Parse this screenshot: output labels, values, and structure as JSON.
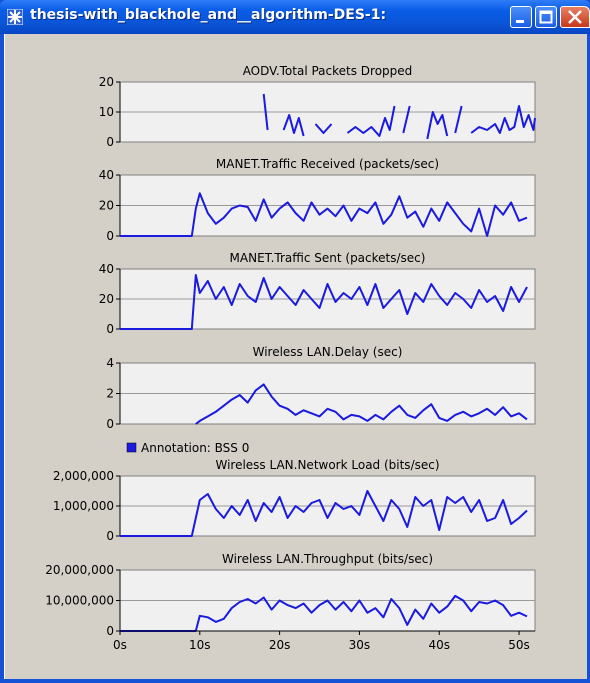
{
  "window": {
    "title": "thesis-with_blackhole_and__algorithm-DES-1:",
    "app_icon": "star-icon",
    "controls": [
      "minimize-icon",
      "maximize-icon",
      "close-icon"
    ],
    "colors": {
      "titlebar": "#0a54d6",
      "client": "#d4d0c8",
      "plot_bg": "#f0f0f0",
      "line": "#1a1ae0",
      "close": "#c8381a"
    }
  },
  "x_axis": {
    "ticks": [
      "0s",
      "10s",
      "20s",
      "30s",
      "40s",
      "50s"
    ],
    "range": [
      0,
      52
    ]
  },
  "chart_data": [
    {
      "type": "line",
      "title": "AODV.Total Packets Dropped",
      "ylim": [
        0,
        20
      ],
      "yticks": [
        "0",
        "10",
        "20"
      ],
      "y_tick_values": [
        0,
        10,
        20
      ],
      "grid": true,
      "series": [
        {
          "segments": [
            [
              [
                18,
                16
              ],
              [
                18.5,
                4
              ]
            ],
            [
              [
                20.5,
                4
              ],
              [
                21.2,
                9
              ],
              [
                21.8,
                3
              ],
              [
                22.4,
                8
              ],
              [
                23,
                2
              ]
            ],
            [
              [
                24.5,
                6
              ],
              [
                25.5,
                3
              ],
              [
                26.5,
                6
              ]
            ],
            [
              [
                28.5,
                3
              ],
              [
                29.5,
                5
              ],
              [
                30.5,
                3
              ],
              [
                31.5,
                5
              ],
              [
                32.5,
                2
              ],
              [
                33.2,
                8
              ],
              [
                33.8,
                4
              ],
              [
                34.4,
                12
              ]
            ],
            [
              [
                35.5,
                3
              ],
              [
                36.3,
                12
              ]
            ],
            [
              [
                38.5,
                1
              ],
              [
                39.2,
                10
              ],
              [
                39.8,
                6
              ],
              [
                40.4,
                9
              ],
              [
                41,
                2
              ]
            ],
            [
              [
                42,
                3
              ],
              [
                42.8,
                12
              ]
            ],
            [
              [
                44,
                3
              ],
              [
                45,
                5
              ],
              [
                46,
                4
              ],
              [
                47,
                6
              ],
              [
                47.6,
                3
              ],
              [
                48.2,
                8
              ],
              [
                48.8,
                4
              ],
              [
                49.4,
                5
              ],
              [
                50,
                12
              ],
              [
                50.6,
                5
              ],
              [
                51.2,
                9
              ],
              [
                51.8,
                4
              ],
              [
                52,
                8
              ]
            ]
          ]
        }
      ]
    },
    {
      "type": "line",
      "title": "MANET.Traffic Received (packets/sec)",
      "ylim": [
        0,
        40
      ],
      "yticks": [
        "0",
        "20",
        "40"
      ],
      "y_tick_values": [
        0,
        20,
        40
      ],
      "grid": true,
      "series": [
        {
          "x": [
            0,
            9,
            9.5,
            10,
            11,
            12,
            13,
            14,
            15,
            16,
            17,
            18,
            19,
            20,
            21,
            22,
            23,
            24,
            25,
            26,
            27,
            28,
            29,
            30,
            31,
            32,
            33,
            34,
            35,
            36,
            37,
            38,
            39,
            40,
            41,
            42,
            43,
            44,
            45,
            46,
            47,
            48,
            49,
            50,
            51
          ],
          "y": [
            0,
            0,
            18,
            28,
            15,
            8,
            12,
            18,
            20,
            19,
            10,
            24,
            12,
            18,
            22,
            15,
            10,
            22,
            14,
            18,
            13,
            20,
            10,
            18,
            15,
            22,
            8,
            14,
            26,
            12,
            16,
            6,
            18,
            10,
            22,
            15,
            8,
            3,
            18,
            0,
            20,
            14,
            22,
            10,
            12
          ]
        }
      ]
    },
    {
      "type": "line",
      "title": "MANET.Traffic Sent (packets/sec)",
      "ylim": [
        0,
        40
      ],
      "yticks": [
        "0",
        "20",
        "40"
      ],
      "y_tick_values": [
        0,
        20,
        40
      ],
      "grid": true,
      "series": [
        {
          "x": [
            0,
            9,
            9.5,
            10,
            11,
            12,
            13,
            14,
            15,
            16,
            17,
            18,
            19,
            20,
            21,
            22,
            23,
            24,
            25,
            26,
            27,
            28,
            29,
            30,
            31,
            32,
            33,
            34,
            35,
            36,
            37,
            38,
            39,
            40,
            41,
            42,
            43,
            44,
            45,
            46,
            47,
            48,
            49,
            50,
            51
          ],
          "y": [
            0,
            0,
            36,
            24,
            32,
            20,
            28,
            16,
            30,
            22,
            18,
            34,
            20,
            28,
            22,
            16,
            26,
            20,
            14,
            30,
            18,
            24,
            20,
            28,
            16,
            30,
            14,
            20,
            26,
            10,
            24,
            18,
            30,
            22,
            16,
            24,
            20,
            14,
            26,
            18,
            22,
            12,
            28,
            18,
            28
          ]
        }
      ]
    },
    {
      "type": "line",
      "title": "Wireless LAN.Delay (sec)",
      "ylim": [
        0,
        4
      ],
      "yticks": [
        "0",
        "2",
        "4"
      ],
      "y_tick_values": [
        0,
        2,
        4
      ],
      "grid": true,
      "series": [
        {
          "x": [
            9.5,
            10,
            11,
            12,
            13,
            14,
            15,
            16,
            17,
            18,
            19,
            20,
            21,
            22,
            23,
            24,
            25,
            26,
            27,
            28,
            29,
            30,
            31,
            32,
            33,
            34,
            35,
            36,
            37,
            38,
            39,
            40,
            41,
            42,
            43,
            44,
            45,
            46,
            47,
            48,
            49,
            50,
            51
          ],
          "y": [
            0,
            0.2,
            0.5,
            0.8,
            1.2,
            1.6,
            1.9,
            1.4,
            2.2,
            2.6,
            1.8,
            1.2,
            1.0,
            0.6,
            0.9,
            0.7,
            0.5,
            1.0,
            0.8,
            0.3,
            0.6,
            0.5,
            0.2,
            0.6,
            0.3,
            0.8,
            1.2,
            0.6,
            0.4,
            0.9,
            1.3,
            0.4,
            0.2,
            0.6,
            0.8,
            0.5,
            0.7,
            1.0,
            0.6,
            1.1,
            0.5,
            0.7,
            0.3
          ]
        }
      ]
    },
    {
      "type": "line",
      "title": "Wireless LAN.Network Load (bits/sec)",
      "ylim": [
        0,
        2000000
      ],
      "yticks": [
        "0",
        "1,000,000",
        "2,000,000"
      ],
      "y_tick_values": [
        0,
        1000000,
        2000000
      ],
      "grid": true,
      "annotation": "Annotation: BSS 0",
      "series": [
        {
          "x": [
            0,
            9,
            10,
            11,
            12,
            13,
            14,
            15,
            16,
            17,
            18,
            19,
            20,
            21,
            22,
            23,
            24,
            25,
            26,
            27,
            28,
            29,
            30,
            31,
            32,
            33,
            34,
            35,
            36,
            37,
            38,
            39,
            40,
            41,
            42,
            43,
            44,
            45,
            46,
            47,
            48,
            49,
            50,
            51
          ],
          "y": [
            0,
            0,
            1200000,
            1400000,
            900000,
            600000,
            1000000,
            700000,
            1200000,
            500000,
            1100000,
            800000,
            1300000,
            600000,
            1000000,
            800000,
            1100000,
            1200000,
            600000,
            1100000,
            900000,
            1000000,
            700000,
            1500000,
            1000000,
            500000,
            1200000,
            900000,
            300000,
            1300000,
            1000000,
            1200000,
            200000,
            1300000,
            1100000,
            1300000,
            800000,
            1200000,
            500000,
            600000,
            1200000,
            400000,
            600000,
            850000
          ]
        }
      ]
    },
    {
      "type": "line",
      "title": "Wireless LAN.Throughput (bits/sec)",
      "ylim": [
        0,
        20000000
      ],
      "yticks": [
        "0",
        "10,000,000",
        "20,000,000"
      ],
      "y_tick_values": [
        0,
        10000000,
        20000000
      ],
      "grid": true,
      "series": [
        {
          "x": [
            0,
            9.5,
            10,
            11,
            12,
            13,
            14,
            15,
            16,
            17,
            18,
            19,
            20,
            21,
            22,
            23,
            24,
            25,
            26,
            27,
            28,
            29,
            30,
            31,
            32,
            33,
            34,
            35,
            36,
            37,
            38,
            39,
            40,
            41,
            42,
            43,
            44,
            45,
            46,
            47,
            48,
            49,
            50,
            51
          ],
          "y": [
            0,
            0,
            5000000,
            4500000,
            3000000,
            4000000,
            7500000,
            9500000,
            10500000,
            9000000,
            11000000,
            7000000,
            10000000,
            8500000,
            7500000,
            9000000,
            6000000,
            8500000,
            10000000,
            7000000,
            9500000,
            6500000,
            10000000,
            6000000,
            7500000,
            4500000,
            10500000,
            7500000,
            2000000,
            7000000,
            4000000,
            9000000,
            6000000,
            8000000,
            11500000,
            10000000,
            6500000,
            9500000,
            9000000,
            10000000,
            8500000,
            5000000,
            6000000,
            4800000
          ]
        }
      ]
    }
  ]
}
